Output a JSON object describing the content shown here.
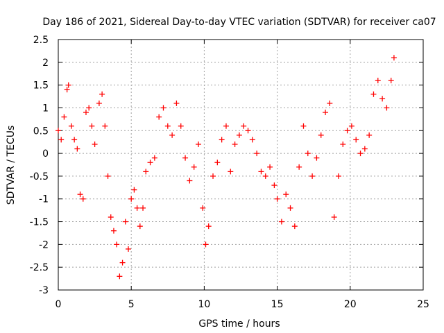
{
  "chart_data": {
    "type": "scatter",
    "title": "Day 186 of 2021, Sidereal Day-to-day VTEC variation (SDTVAR) for receiver ca07",
    "xlabel": "GPS time / hours",
    "ylabel": "SDTVAR / TECUs",
    "xlim": [
      0,
      25
    ],
    "ylim": [
      -3,
      2.5
    ],
    "xticks": [
      "0",
      "5",
      "10",
      "15",
      "20",
      "25"
    ],
    "yticks": [
      "-3",
      "-2.5",
      "-2",
      "-1.5",
      "-1",
      "-0.5",
      "0",
      "0.5",
      "1",
      "1.5",
      "2",
      "2.5"
    ],
    "grid": true,
    "marker": "plus",
    "color": "#ff0000",
    "series": [
      {
        "name": "SDTVAR",
        "x": [
          0.0,
          0.2,
          0.4,
          0.6,
          0.7,
          0.9,
          1.1,
          1.3,
          1.5,
          1.7,
          1.9,
          2.1,
          2.3,
          2.5,
          2.8,
          3.0,
          3.2,
          3.4,
          3.6,
          3.8,
          4.0,
          4.2,
          4.4,
          4.6,
          4.8,
          5.0,
          5.2,
          5.4,
          5.6,
          5.8,
          6.0,
          6.3,
          6.6,
          6.9,
          7.2,
          7.5,
          7.8,
          8.1,
          8.4,
          8.7,
          9.0,
          9.3,
          9.6,
          9.9,
          10.1,
          10.3,
          10.6,
          10.9,
          11.2,
          11.5,
          11.8,
          12.1,
          12.4,
          12.7,
          13.0,
          13.3,
          13.6,
          13.9,
          14.2,
          14.5,
          14.8,
          15.0,
          15.3,
          15.6,
          15.9,
          16.2,
          16.5,
          16.8,
          17.1,
          17.4,
          17.7,
          18.0,
          18.3,
          18.6,
          18.9,
          19.2,
          19.5,
          19.8,
          20.1,
          20.4,
          20.7,
          21.0,
          21.3,
          21.6,
          21.9,
          22.2,
          22.5,
          22.8,
          23.0
        ],
        "y": [
          0.5,
          0.3,
          0.8,
          1.4,
          1.5,
          0.6,
          0.3,
          0.1,
          -0.9,
          -1.0,
          0.9,
          1.0,
          0.6,
          0.2,
          1.1,
          1.3,
          0.6,
          -0.5,
          -1.4,
          -1.7,
          -2.0,
          -2.7,
          -2.4,
          -1.5,
          -2.1,
          -1.0,
          -0.8,
          -1.2,
          -1.6,
          -1.2,
          -0.4,
          -0.2,
          -0.1,
          0.8,
          1.0,
          0.6,
          0.4,
          1.1,
          0.6,
          -0.1,
          -0.6,
          -0.3,
          0.2,
          -1.2,
          -2.0,
          -1.6,
          -0.5,
          -0.2,
          0.3,
          0.6,
          -0.4,
          0.2,
          0.4,
          0.6,
          0.5,
          0.3,
          0.0,
          -0.4,
          -0.5,
          -0.3,
          -0.7,
          -1.0,
          -1.5,
          -0.9,
          -1.2,
          -1.6,
          -0.3,
          0.6,
          0.0,
          -0.5,
          -0.1,
          0.4,
          0.9,
          1.1,
          -1.4,
          -0.5,
          0.2,
          0.5,
          0.6,
          0.3,
          0.0,
          0.1,
          0.4,
          1.3,
          1.6,
          1.2,
          1.0,
          1.6,
          2.1
        ]
      }
    ]
  }
}
